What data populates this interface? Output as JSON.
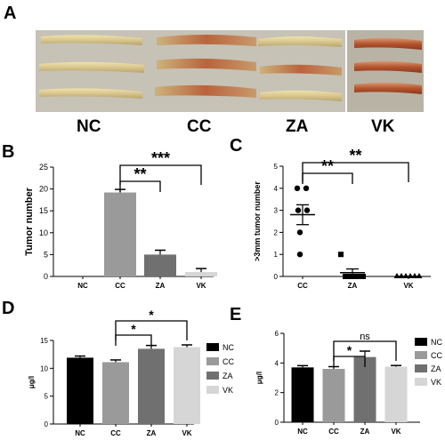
{
  "panels": {
    "A": {
      "letter": "A",
      "groups": [
        "NC",
        "CC",
        "ZA",
        "VK"
      ]
    },
    "B": {
      "letter": "B"
    },
    "C": {
      "letter": "C"
    },
    "D": {
      "letter": "D"
    },
    "E": {
      "letter": "E"
    }
  },
  "colors": {
    "NC": "#000000",
    "CC": "#9a9a9a",
    "ZA": "#707070",
    "VK": "#d6d6d6",
    "tissue_pale": "#d8c68e",
    "tissue_red": "#b4542e",
    "photo_bg": "#c6c2b6"
  },
  "chart_data": [
    {
      "id": "B",
      "type": "bar",
      "categories": [
        "NC",
        "CC",
        "ZA",
        "VK"
      ],
      "values": [
        0,
        19.2,
        5.0,
        1.0
      ],
      "errors": [
        0,
        0.7,
        1.0,
        0.8
      ],
      "ylabel": "Tumor number",
      "xlabel": "",
      "ylim": [
        0,
        25
      ],
      "yticks": [
        "0",
        "5",
        "10",
        "15",
        "20",
        "25"
      ],
      "significance": [
        {
          "from": "CC",
          "to": "ZA",
          "label": "**"
        },
        {
          "from": "CC",
          "to": "VK",
          "label": "***"
        }
      ]
    },
    {
      "id": "C",
      "type": "scatter",
      "categories": [
        "CC",
        "ZA",
        "VK"
      ],
      "points": [
        {
          "category": "CC",
          "values": [
            4,
            4,
            3,
            3,
            2,
            1
          ],
          "marker": "circle"
        },
        {
          "category": "ZA",
          "values": [
            1,
            0,
            0,
            0,
            0,
            0
          ],
          "marker": "square"
        },
        {
          "category": "VK",
          "values": [
            0,
            0,
            0,
            0,
            0,
            0
          ],
          "marker": "triangle"
        }
      ],
      "means": [
        2.8,
        0.17,
        0.0
      ],
      "errors": [
        0.45,
        0.17,
        0.0
      ],
      "ylabel": ">3mm  tumor number",
      "xlabel": "",
      "ylim": [
        0,
        5
      ],
      "yticks": [
        "0",
        "1",
        "2",
        "3",
        "4",
        "5"
      ],
      "significance": [
        {
          "from": "CC",
          "to": "ZA",
          "label": "**"
        },
        {
          "from": "CC",
          "to": "VK",
          "label": "**"
        }
      ]
    },
    {
      "id": "D",
      "type": "bar",
      "categories": [
        "NC",
        "CC",
        "ZA",
        "VK"
      ],
      "values": [
        11.9,
        11.1,
        13.5,
        13.8
      ],
      "errors": [
        0.3,
        0.4,
        0.6,
        0.4
      ],
      "ylabel": "μg/l",
      "xlabel": "",
      "ylim": [
        0,
        15
      ],
      "yticks": [
        "0",
        "5",
        "10",
        "15"
      ],
      "legend": [
        "NC",
        "CC",
        "ZA",
        "VK"
      ],
      "legend_position": "right",
      "significance": [
        {
          "from": "CC",
          "to": "ZA",
          "label": "*"
        },
        {
          "from": "CC",
          "to": "VK",
          "label": "*"
        }
      ]
    },
    {
      "id": "E",
      "type": "bar",
      "categories": [
        "NC",
        "CC",
        "ZA",
        "VK"
      ],
      "values": [
        3.7,
        3.6,
        4.4,
        3.75
      ],
      "errors": [
        0.12,
        0.15,
        0.4,
        0.08
      ],
      "ylabel": "μg/l",
      "xlabel": "",
      "ylim": [
        0,
        6
      ],
      "yticks": [
        "0",
        "2",
        "4",
        "6"
      ],
      "legend": [
        "NC",
        "CC",
        "ZA",
        "VK"
      ],
      "legend_position": "right",
      "significance": [
        {
          "from": "CC",
          "to": "ZA",
          "label": "*"
        },
        {
          "from": "CC",
          "to": "VK",
          "label": "ns"
        }
      ]
    }
  ]
}
